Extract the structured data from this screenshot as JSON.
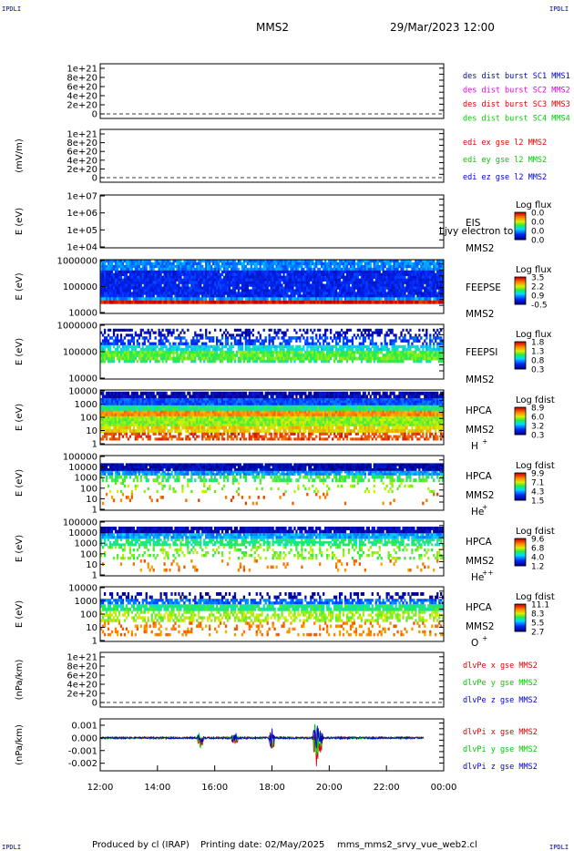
{
  "header": {
    "corner_label": "IPDLI",
    "spacecraft": "MMS2",
    "datetime": "29/Mar/2023 12:00"
  },
  "footer": {
    "produced_by": "Produced by cl (IRAP)",
    "printing_date": "Printing date: 02/May/2025",
    "script_name": "mms_mms2_srvy_vue_web2.cl"
  },
  "time_axis": {
    "ticks": [
      "12:00",
      "14:00",
      "16:00",
      "18:00",
      "20:00",
      "22:00",
      "00:00"
    ]
  },
  "colors": {
    "red": "#dd0000",
    "magenta": "#dd00dd",
    "green": "#00cc00",
    "blue": "#0000cc"
  },
  "chart_data": [
    {
      "id": "p1",
      "type": "line",
      "ylabel": "",
      "yticks": [
        "1e+21",
        "8e+20",
        "6e+20",
        "4e+20",
        "2e+20",
        "0"
      ],
      "ylim": [
        0,
        1e+21
      ],
      "legend": [
        {
          "label": "des dist burst SC1 MMS1",
          "color": "#0000cc"
        },
        {
          "label": "des dist burst SC2 MMS2",
          "color": "#dd00dd"
        },
        {
          "label": "des dist burst SC3 MMS3",
          "color": "#dd0000"
        },
        {
          "label": "des dist burst SC4 MMS4",
          "color": "#00cc00"
        }
      ],
      "series": []
    },
    {
      "id": "p2",
      "type": "line",
      "ylabel": "(mV/m)",
      "yticks": [
        "1e+21",
        "8e+20",
        "6e+20",
        "4e+20",
        "2e+20",
        "0"
      ],
      "ylim": [
        0,
        1e+21
      ],
      "legend": [
        {
          "label": "edi ex gse l2 MMS2",
          "color": "#dd0000"
        },
        {
          "label": "edi ey gse l2 MMS2",
          "color": "#00cc00"
        },
        {
          "label": "edi ez gse l2 MMS2",
          "color": "#0000cc"
        }
      ],
      "series": []
    },
    {
      "id": "p3",
      "type": "heatmap",
      "ylabel": "E (eV)",
      "yticks": [
        "1e+07",
        "1e+06",
        "1e+05",
        "1e+04"
      ],
      "ylim": [
        10000.0,
        10000000.0
      ],
      "log_scale": true,
      "instrument": [
        "EIS",
        "",
        "MMS2"
      ],
      "overlay_text": "Ljvy electron to",
      "colorbar": {
        "title": "Log flux",
        "labels": [
          "0.0",
          "0.0",
          "0.0",
          "0.0"
        ]
      },
      "bands": []
    },
    {
      "id": "p4",
      "type": "heatmap",
      "ylabel": "E (eV)",
      "yticks": [
        "1000000",
        "100000",
        "10000"
      ],
      "ylim": [
        10000.0,
        1000000.0
      ],
      "log_scale": true,
      "instrument": [
        "FEEPSE",
        "",
        "MMS2"
      ],
      "colorbar": {
        "title": "Log flux",
        "labels": [
          "3.5",
          "2.2",
          "0.9",
          "-0.5"
        ]
      },
      "bands": [
        {
          "from": 1.0,
          "to": 0.8,
          "level": 0.28,
          "density": 0.9
        },
        {
          "from": 0.8,
          "to": 0.3,
          "level": 0.15,
          "density": 0.97
        },
        {
          "from": 0.3,
          "to": 0.24,
          "level": 0.3,
          "density": 0.95
        },
        {
          "from": 0.24,
          "to": 0.18,
          "level": 0.98,
          "density": 1.0
        }
      ]
    },
    {
      "id": "p5",
      "type": "heatmap",
      "ylabel": "E (eV)",
      "yticks": [
        "1000000",
        "100000",
        "10000"
      ],
      "ylim": [
        10000.0,
        1000000.0
      ],
      "log_scale": true,
      "instrument": [
        "FEEPSI",
        "",
        "MMS2"
      ],
      "colorbar": {
        "title": "Log flux",
        "labels": [
          "1.8",
          "1.3",
          "0.8",
          "0.3"
        ]
      },
      "bands": [
        {
          "from": 0.92,
          "to": 0.78,
          "level": 0.06,
          "density": 0.35
        },
        {
          "from": 0.78,
          "to": 0.62,
          "level": 0.2,
          "density": 0.55
        },
        {
          "from": 0.62,
          "to": 0.52,
          "level": 0.4,
          "density": 0.85
        },
        {
          "from": 0.52,
          "to": 0.35,
          "level": 0.55,
          "density": 0.95
        },
        {
          "from": 0.35,
          "to": 0.3,
          "level": 0.5,
          "density": 0.6
        }
      ]
    },
    {
      "id": "p6",
      "type": "heatmap",
      "ylabel": "E (eV)",
      "yticks": [
        "10000",
        "1000",
        "100",
        "10",
        "1"
      ],
      "ylim": [
        1,
        30000
      ],
      "log_scale": true,
      "instrument": [
        "HPCA",
        "MMS2",
        "H",
        "+"
      ],
      "colorbar": {
        "title": "Log fdist",
        "labels": [
          "8.9",
          "6.0",
          "3.2",
          "0.3"
        ]
      },
      "bands": [
        {
          "from": 0.97,
          "to": 0.85,
          "level": 0.05,
          "density": 0.9
        },
        {
          "from": 0.85,
          "to": 0.72,
          "level": 0.22,
          "density": 1.0
        },
        {
          "from": 0.72,
          "to": 0.62,
          "level": 0.48,
          "density": 1.0
        },
        {
          "from": 0.62,
          "to": 0.52,
          "level": 0.8,
          "density": 1.0
        },
        {
          "from": 0.52,
          "to": 0.34,
          "level": 0.6,
          "density": 1.0
        },
        {
          "from": 0.34,
          "to": 0.22,
          "level": 0.72,
          "density": 0.9
        },
        {
          "from": 0.22,
          "to": 0.08,
          "level": 0.9,
          "density": 0.6
        }
      ]
    },
    {
      "id": "p7",
      "type": "heatmap",
      "ylabel": "E (eV)",
      "yticks": [
        "100000",
        "10000",
        "1000",
        "100",
        "10",
        "1"
      ],
      "ylim": [
        1,
        100000
      ],
      "log_scale": true,
      "instrument": [
        "HPCA",
        "MMS2",
        "He",
        "+"
      ],
      "colorbar": {
        "title": "Log fdist",
        "labels": [
          "9.9",
          "7.1",
          "4.3",
          "1.5"
        ]
      },
      "bands": [
        {
          "from": 0.86,
          "to": 0.72,
          "level": 0.05,
          "density": 0.95
        },
        {
          "from": 0.72,
          "to": 0.64,
          "level": 0.3,
          "density": 0.9
        },
        {
          "from": 0.64,
          "to": 0.52,
          "level": 0.52,
          "density": 0.55
        },
        {
          "from": 0.52,
          "to": 0.32,
          "level": 0.6,
          "density": 0.12
        },
        {
          "from": 0.32,
          "to": 0.1,
          "level": 0.85,
          "density": 0.05
        }
      ]
    },
    {
      "id": "p8",
      "type": "heatmap",
      "ylabel": "E (eV)",
      "yticks": [
        "100000",
        "10000",
        "1000",
        "100",
        "10",
        "1"
      ],
      "ylim": [
        1,
        100000
      ],
      "log_scale": true,
      "instrument": [
        "HPCA",
        "MMS2",
        "He",
        "++"
      ],
      "colorbar": {
        "title": "Log fdist",
        "labels": [
          "9.6",
          "6.8",
          "4.0",
          "1.2"
        ]
      },
      "bands": [
        {
          "from": 0.9,
          "to": 0.78,
          "level": 0.05,
          "density": 0.9
        },
        {
          "from": 0.78,
          "to": 0.68,
          "level": 0.32,
          "density": 0.95
        },
        {
          "from": 0.68,
          "to": 0.55,
          "level": 0.48,
          "density": 0.7
        },
        {
          "from": 0.55,
          "to": 0.3,
          "level": 0.58,
          "density": 0.3
        },
        {
          "from": 0.3,
          "to": 0.08,
          "level": 0.82,
          "density": 0.08
        }
      ]
    },
    {
      "id": "p9",
      "type": "heatmap",
      "ylabel": "E (eV)",
      "yticks": [
        "10000",
        "1000",
        "100",
        "10",
        "1"
      ],
      "ylim": [
        1,
        30000
      ],
      "log_scale": true,
      "instrument": [
        "HPCA",
        "MMS2",
        "O",
        "+"
      ],
      "colorbar": {
        "title": "Log fdist",
        "labels": [
          "11.1",
          "8.3",
          "5.5",
          "2.7"
        ]
      },
      "bands": [
        {
          "from": 0.9,
          "to": 0.78,
          "level": 0.04,
          "density": 0.35
        },
        {
          "from": 0.78,
          "to": 0.68,
          "level": 0.25,
          "density": 0.75
        },
        {
          "from": 0.68,
          "to": 0.56,
          "level": 0.48,
          "density": 0.85
        },
        {
          "from": 0.56,
          "to": 0.36,
          "level": 0.62,
          "density": 0.55
        },
        {
          "from": 0.36,
          "to": 0.1,
          "level": 0.82,
          "density": 0.25
        }
      ]
    },
    {
      "id": "p10",
      "type": "line",
      "ylabel": "(nPa/km)",
      "yticks": [
        "1e+21",
        "8e+20",
        "6e+20",
        "4e+20",
        "2e+20",
        "0"
      ],
      "ylim": [
        0,
        1e+21
      ],
      "legend": [
        {
          "label": "dlvPe x gse MMS2",
          "color": "#dd0000"
        },
        {
          "label": "dlvPe y gse MMS2",
          "color": "#00cc00"
        },
        {
          "label": "dlvPe z gse MMS2",
          "color": "#0000cc"
        }
      ],
      "series": []
    },
    {
      "id": "p11",
      "type": "line",
      "ylabel": "(nPa/km)",
      "yticks": [
        "0.001",
        "0.000",
        "-0.001",
        "-0.002"
      ],
      "ylim": [
        -0.0026,
        0.0015
      ],
      "legend": [
        {
          "label": "dlvPi x gse MMS2",
          "color": "#dd0000"
        },
        {
          "label": "dlvPi y gse MMS2",
          "color": "#00cc00"
        },
        {
          "label": "dlvPi z gse MMS2",
          "color": "#0000cc"
        }
      ],
      "baseline_noise": 8e-05,
      "events": [
        {
          "t": 3.5,
          "amp": 0.0007,
          "width": 0.15
        },
        {
          "t": 4.7,
          "amp": 0.0006,
          "width": 0.15
        },
        {
          "t": 6.0,
          "amp": 0.0012,
          "width": 0.12
        },
        {
          "t": 7.55,
          "amp": 0.002,
          "width": 0.15
        },
        {
          "t": 7.7,
          "amp": 0.0012,
          "width": 0.1
        }
      ],
      "t_end": 11.3
    }
  ]
}
